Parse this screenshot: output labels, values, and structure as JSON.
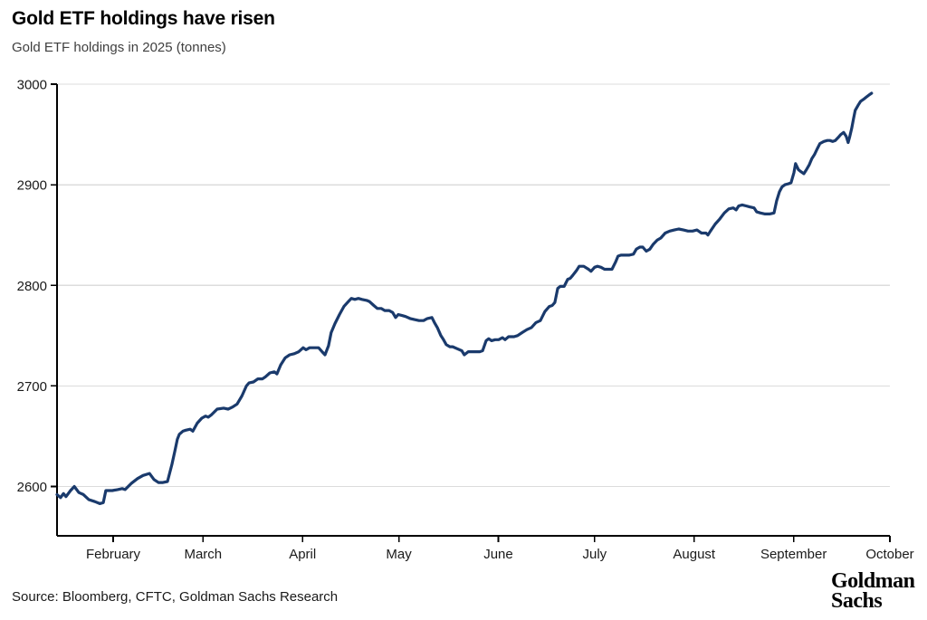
{
  "header": {
    "title": "Gold ETF holdings have risen",
    "subtitle": "Gold ETF holdings in 2025 (tonnes)"
  },
  "footer": {
    "source": "Source: Bloomberg, CFTC, Goldman Sachs Research",
    "logo_line1": "Goldman",
    "logo_line2": "Sachs"
  },
  "colors": {
    "line": "#1a3a6c",
    "grid": "#dcdcdc",
    "axis": "#000000",
    "tick_text": "#1a1a1a"
  },
  "chart_data": {
    "type": "line",
    "title": "Gold ETF holdings have risen",
    "subtitle": "Gold ETF holdings in 2025 (tonnes)",
    "xlabel": "",
    "ylabel": "tonnes",
    "grid": "horizontal",
    "legend": "none",
    "x_axis": {
      "unit": "day-of-year 2025",
      "range_days": [
        14.5,
        274
      ],
      "ticks": [
        {
          "day": 32,
          "label": "February"
        },
        {
          "day": 60,
          "label": "March"
        },
        {
          "day": 91,
          "label": "April"
        },
        {
          "day": 121,
          "label": "May"
        },
        {
          "day": 152,
          "label": "June"
        },
        {
          "day": 182,
          "label": "July"
        },
        {
          "day": 213,
          "label": "August"
        },
        {
          "day": 244,
          "label": "September"
        },
        {
          "day": 274,
          "label": "October"
        }
      ]
    },
    "y_axis": {
      "range": [
        2551,
        3000
      ],
      "ticks": [
        2600,
        2700,
        2800,
        2900,
        3000
      ]
    },
    "series": [
      {
        "name": "Gold ETF holdings (tonnes)",
        "points": [
          [
            14.5,
            2592
          ],
          [
            15.6,
            2589
          ],
          [
            16.5,
            2593
          ],
          [
            17.3,
            2590
          ],
          [
            18.7,
            2596
          ],
          [
            19.9,
            2600
          ],
          [
            21.3,
            2594
          ],
          [
            22.7,
            2592
          ],
          [
            24.4,
            2587
          ],
          [
            26.3,
            2585
          ],
          [
            27.8,
            2583
          ],
          [
            28.9,
            2584
          ],
          [
            29.7,
            2596
          ],
          [
            31.7,
            2596
          ],
          [
            33.4,
            2597
          ],
          [
            34.8,
            2598
          ],
          [
            35.7,
            2597
          ],
          [
            37.6,
            2603
          ],
          [
            39.6,
            2608
          ],
          [
            41.3,
            2611
          ],
          [
            43.3,
            2613
          ],
          [
            44.7,
            2607
          ],
          [
            46.1,
            2604
          ],
          [
            47.5,
            2604
          ],
          [
            48.9,
            2605
          ],
          [
            50.3,
            2622
          ],
          [
            51.2,
            2635
          ],
          [
            52.0,
            2647
          ],
          [
            52.6,
            2652
          ],
          [
            53.7,
            2655
          ],
          [
            54.6,
            2656
          ],
          [
            56.0,
            2657
          ],
          [
            56.8,
            2655
          ],
          [
            58.2,
            2663
          ],
          [
            59.6,
            2668
          ],
          [
            60.8,
            2670
          ],
          [
            61.6,
            2669
          ],
          [
            62.5,
            2671
          ],
          [
            64.4,
            2677
          ],
          [
            66.4,
            2678
          ],
          [
            67.8,
            2677
          ],
          [
            69.2,
            2679
          ],
          [
            70.6,
            2682
          ],
          [
            72.1,
            2690
          ],
          [
            73.5,
            2700
          ],
          [
            74.3,
            2703
          ],
          [
            75.7,
            2704
          ],
          [
            77.1,
            2707
          ],
          [
            78.5,
            2707
          ],
          [
            79.4,
            2709
          ],
          [
            80.8,
            2713
          ],
          [
            82.2,
            2714
          ],
          [
            83.0,
            2712
          ],
          [
            84.2,
            2721
          ],
          [
            85.6,
            2728
          ],
          [
            87.0,
            2731
          ],
          [
            88.4,
            2732
          ],
          [
            89.8,
            2734
          ],
          [
            91.2,
            2738
          ],
          [
            92.1,
            2736
          ],
          [
            93.2,
            2738
          ],
          [
            94.6,
            2738
          ],
          [
            96.0,
            2738
          ],
          [
            97.1,
            2734
          ],
          [
            98.0,
            2731
          ],
          [
            99.1,
            2740
          ],
          [
            99.9,
            2753
          ],
          [
            101.1,
            2762
          ],
          [
            102.5,
            2771
          ],
          [
            103.9,
            2779
          ],
          [
            105.3,
            2784
          ],
          [
            106.2,
            2787
          ],
          [
            107.3,
            2786
          ],
          [
            108.4,
            2787
          ],
          [
            109.5,
            2786
          ],
          [
            111.0,
            2785
          ],
          [
            111.8,
            2784
          ],
          [
            113.2,
            2780
          ],
          [
            114.3,
            2777
          ],
          [
            115.5,
            2777
          ],
          [
            116.6,
            2775
          ],
          [
            118.0,
            2775
          ],
          [
            119.1,
            2773
          ],
          [
            120.0,
            2768
          ],
          [
            120.8,
            2771
          ],
          [
            122.0,
            2770
          ],
          [
            123.1,
            2769
          ],
          [
            124.5,
            2767
          ],
          [
            125.9,
            2766
          ],
          [
            127.3,
            2765
          ],
          [
            128.7,
            2765
          ],
          [
            129.9,
            2767
          ],
          [
            131.3,
            2768
          ],
          [
            132.1,
            2763
          ],
          [
            133.0,
            2758
          ],
          [
            134.1,
            2750
          ],
          [
            134.9,
            2746
          ],
          [
            135.8,
            2741
          ],
          [
            136.9,
            2739
          ],
          [
            137.8,
            2739
          ],
          [
            139.2,
            2737
          ],
          [
            140.6,
            2735
          ],
          [
            141.4,
            2731
          ],
          [
            142.6,
            2734
          ],
          [
            143.6,
            2734
          ],
          [
            144.8,
            2734
          ],
          [
            146.2,
            2734
          ],
          [
            147.1,
            2735
          ],
          [
            148.2,
            2745
          ],
          [
            149.0,
            2747
          ],
          [
            149.9,
            2745
          ],
          [
            151.0,
            2746
          ],
          [
            152.1,
            2746
          ],
          [
            153.3,
            2748
          ],
          [
            154.1,
            2746
          ],
          [
            155.2,
            2749
          ],
          [
            156.1,
            2749
          ],
          [
            156.9,
            2749
          ],
          [
            158.0,
            2750
          ],
          [
            159.4,
            2753
          ],
          [
            160.9,
            2756
          ],
          [
            162.3,
            2758
          ],
          [
            163.7,
            2763
          ],
          [
            165.1,
            2765
          ],
          [
            166.5,
            2774
          ],
          [
            167.9,
            2779
          ],
          [
            168.8,
            2780
          ],
          [
            169.6,
            2783
          ],
          [
            170.5,
            2797
          ],
          [
            171.3,
            2799
          ],
          [
            172.5,
            2799
          ],
          [
            173.6,
            2806
          ],
          [
            174.4,
            2807
          ],
          [
            175.2,
            2810
          ],
          [
            176.4,
            2815
          ],
          [
            177.2,
            2819
          ],
          [
            178.6,
            2819
          ],
          [
            180.1,
            2816
          ],
          [
            180.9,
            2814
          ],
          [
            182.0,
            2818
          ],
          [
            182.9,
            2819
          ],
          [
            184.0,
            2818
          ],
          [
            185.1,
            2816
          ],
          [
            186.3,
            2816
          ],
          [
            187.4,
            2816
          ],
          [
            188.5,
            2823
          ],
          [
            189.3,
            2829
          ],
          [
            190.2,
            2830
          ],
          [
            191.3,
            2830
          ],
          [
            192.7,
            2830
          ],
          [
            194.1,
            2831
          ],
          [
            195.0,
            2836
          ],
          [
            196.1,
            2838
          ],
          [
            197.0,
            2838
          ],
          [
            198.1,
            2834
          ],
          [
            199.2,
            2836
          ],
          [
            200.3,
            2841
          ],
          [
            201.5,
            2845
          ],
          [
            202.6,
            2847
          ],
          [
            204.0,
            2852
          ],
          [
            205.4,
            2854
          ],
          [
            206.8,
            2855
          ],
          [
            208.2,
            2856
          ],
          [
            209.7,
            2855
          ],
          [
            211.1,
            2854
          ],
          [
            212.5,
            2854
          ],
          [
            213.9,
            2855
          ],
          [
            215.3,
            2852
          ],
          [
            216.7,
            2852
          ],
          [
            217.3,
            2850
          ],
          [
            218.1,
            2854
          ],
          [
            219.6,
            2861
          ],
          [
            221.0,
            2866
          ],
          [
            222.4,
            2872
          ],
          [
            223.8,
            2876
          ],
          [
            225.2,
            2877
          ],
          [
            226.1,
            2875
          ],
          [
            226.9,
            2879
          ],
          [
            228.0,
            2880
          ],
          [
            229.2,
            2879
          ],
          [
            230.3,
            2878
          ],
          [
            231.7,
            2877
          ],
          [
            232.5,
            2873
          ],
          [
            233.7,
            2872
          ],
          [
            235.1,
            2871
          ],
          [
            236.5,
            2871
          ],
          [
            237.9,
            2872
          ],
          [
            238.7,
            2884
          ],
          [
            239.6,
            2893
          ],
          [
            240.4,
            2898
          ],
          [
            241.3,
            2900
          ],
          [
            242.4,
            2901
          ],
          [
            243.2,
            2902
          ],
          [
            244.1,
            2912
          ],
          [
            244.6,
            2921
          ],
          [
            245.5,
            2915
          ],
          [
            246.3,
            2913
          ],
          [
            247.2,
            2911
          ],
          [
            248.0,
            2915
          ],
          [
            248.9,
            2920
          ],
          [
            249.7,
            2926
          ],
          [
            250.5,
            2930
          ],
          [
            251.4,
            2936
          ],
          [
            252.2,
            2941
          ],
          [
            253.4,
            2943
          ],
          [
            254.5,
            2944
          ],
          [
            255.3,
            2944
          ],
          [
            256.2,
            2943
          ],
          [
            257.0,
            2944
          ],
          [
            257.9,
            2947
          ],
          [
            258.7,
            2950
          ],
          [
            259.6,
            2952
          ],
          [
            260.4,
            2948
          ],
          [
            261.0,
            2942
          ],
          [
            261.5,
            2948
          ],
          [
            262.1,
            2956
          ],
          [
            262.7,
            2966
          ],
          [
            263.2,
            2974
          ],
          [
            264.1,
            2979
          ],
          [
            264.9,
            2983
          ],
          [
            265.8,
            2985
          ],
          [
            266.6,
            2987
          ],
          [
            267.4,
            2989
          ],
          [
            268.3,
            2991
          ]
        ]
      }
    ]
  }
}
